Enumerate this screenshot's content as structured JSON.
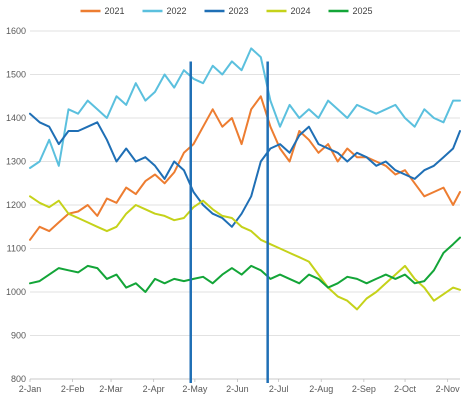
{
  "chart_data": {
    "type": "line",
    "title": "",
    "xlabel": "",
    "ylabel": "",
    "ylim": [
      800,
      1600
    ],
    "yticks": [
      800,
      900,
      1000,
      1100,
      1200,
      1300,
      1400,
      1500,
      1600
    ],
    "xlim": [
      "2-Jan",
      "11-Nov"
    ],
    "x_tick_labels": [
      "2-Jan",
      "2-Feb",
      "2-Mar",
      "2-Apr",
      "2-May",
      "2-Jun",
      "2-Jul",
      "2-Aug",
      "2-Sep",
      "2-Oct",
      "2-Nov"
    ],
    "grid": "horizontal",
    "legend": "top",
    "series": [
      {
        "name": "2021",
        "color": "#ED7D31",
        "points": [
          [
            "2-Jan",
            1120
          ],
          [
            "9-Jan",
            1150
          ],
          [
            "16-Jan",
            1140
          ],
          [
            "23-Jan",
            1160
          ],
          [
            "30-Jan",
            1180
          ],
          [
            "6-Feb",
            1185
          ],
          [
            "13-Feb",
            1200
          ],
          [
            "20-Feb",
            1175
          ],
          [
            "27-Feb",
            1215
          ],
          [
            "6-Mar",
            1205
          ],
          [
            "13-Mar",
            1240
          ],
          [
            "20-Mar",
            1225
          ],
          [
            "27-Mar",
            1255
          ],
          [
            "3-Apr",
            1270
          ],
          [
            "10-Apr",
            1250
          ],
          [
            "17-Apr",
            1275
          ],
          [
            "24-Apr",
            1320
          ],
          [
            "1-May",
            1340
          ],
          [
            "8-May",
            1380
          ],
          [
            "15-May",
            1420
          ],
          [
            "22-May",
            1380
          ],
          [
            "29-May",
            1400
          ],
          [
            "5-Jun",
            1340
          ],
          [
            "12-Jun",
            1420
          ],
          [
            "19-Jun",
            1450
          ],
          [
            "26-Jun",
            1380
          ],
          [
            "3-Jul",
            1330
          ],
          [
            "10-Jul",
            1300
          ],
          [
            "17-Jul",
            1370
          ],
          [
            "24-Jul",
            1350
          ],
          [
            "31-Jul",
            1320
          ],
          [
            "7-Aug",
            1340
          ],
          [
            "14-Aug",
            1300
          ],
          [
            "21-Aug",
            1330
          ],
          [
            "28-Aug",
            1310
          ],
          [
            "4-Sep",
            1310
          ],
          [
            "11-Sep",
            1300
          ],
          [
            "18-Sep",
            1290
          ],
          [
            "25-Sep",
            1270
          ],
          [
            "2-Oct",
            1280
          ],
          [
            "9-Oct",
            1250
          ],
          [
            "16-Oct",
            1220
          ],
          [
            "23-Oct",
            1230
          ],
          [
            "30-Oct",
            1240
          ],
          [
            "6-Nov",
            1200
          ],
          [
            "11-Nov",
            1230
          ]
        ]
      },
      {
        "name": "2022",
        "color": "#5BC0DE",
        "points": [
          [
            "2-Jan",
            1285
          ],
          [
            "9-Jan",
            1300
          ],
          [
            "16-Jan",
            1350
          ],
          [
            "23-Jan",
            1290
          ],
          [
            "30-Jan",
            1420
          ],
          [
            "6-Feb",
            1410
          ],
          [
            "13-Feb",
            1440
          ],
          [
            "20-Feb",
            1420
          ],
          [
            "27-Feb",
            1400
          ],
          [
            "6-Mar",
            1450
          ],
          [
            "13-Mar",
            1430
          ],
          [
            "20-Mar",
            1480
          ],
          [
            "27-Mar",
            1440
          ],
          [
            "3-Apr",
            1460
          ],
          [
            "10-Apr",
            1500
          ],
          [
            "17-Apr",
            1470
          ],
          [
            "24-Apr",
            1510
          ],
          [
            "1-May",
            1490
          ],
          [
            "8-May",
            1480
          ],
          [
            "15-May",
            1520
          ],
          [
            "22-May",
            1500
          ],
          [
            "29-May",
            1530
          ],
          [
            "5-Jun",
            1510
          ],
          [
            "12-Jun",
            1560
          ],
          [
            "19-Jun",
            1540
          ],
          [
            "26-Jun",
            1440
          ],
          [
            "3-Jul",
            1380
          ],
          [
            "10-Jul",
            1430
          ],
          [
            "17-Jul",
            1400
          ],
          [
            "24-Jul",
            1420
          ],
          [
            "31-Jul",
            1400
          ],
          [
            "7-Aug",
            1440
          ],
          [
            "14-Aug",
            1420
          ],
          [
            "21-Aug",
            1400
          ],
          [
            "28-Aug",
            1430
          ],
          [
            "4-Sep",
            1420
          ],
          [
            "11-Sep",
            1410
          ],
          [
            "18-Sep",
            1420
          ],
          [
            "25-Sep",
            1430
          ],
          [
            "2-Oct",
            1400
          ],
          [
            "9-Oct",
            1380
          ],
          [
            "16-Oct",
            1420
          ],
          [
            "23-Oct",
            1400
          ],
          [
            "30-Oct",
            1390
          ],
          [
            "6-Nov",
            1440
          ],
          [
            "11-Nov",
            1440
          ]
        ]
      },
      {
        "name": "2023",
        "color": "#1F6FB5",
        "points": [
          [
            "2-Jan",
            1410
          ],
          [
            "9-Jan",
            1390
          ],
          [
            "16-Jan",
            1380
          ],
          [
            "23-Jan",
            1340
          ],
          [
            "30-Jan",
            1370
          ],
          [
            "6-Feb",
            1370
          ],
          [
            "13-Feb",
            1380
          ],
          [
            "20-Feb",
            1390
          ],
          [
            "27-Feb",
            1350
          ],
          [
            "6-Mar",
            1300
          ],
          [
            "13-Mar",
            1330
          ],
          [
            "20-Mar",
            1300
          ],
          [
            "27-Mar",
            1310
          ],
          [
            "3-Apr",
            1290
          ],
          [
            "10-Apr",
            1260
          ],
          [
            "17-Apr",
            1300
          ],
          [
            "24-Apr",
            1280
          ],
          [
            "1-May",
            1230
          ],
          [
            "8-May",
            1200
          ],
          [
            "15-May",
            1180
          ],
          [
            "22-May",
            1170
          ],
          [
            "29-May",
            1150
          ],
          [
            "5-Jun",
            1180
          ],
          [
            "12-Jun",
            1220
          ],
          [
            "19-Jun",
            1300
          ],
          [
            "26-Jun",
            1330
          ],
          [
            "3-Jul",
            1340
          ],
          [
            "10-Jul",
            1320
          ],
          [
            "17-Jul",
            1360
          ],
          [
            "24-Jul",
            1380
          ],
          [
            "31-Jul",
            1340
          ],
          [
            "7-Aug",
            1330
          ],
          [
            "14-Aug",
            1320
          ],
          [
            "21-Aug",
            1300
          ],
          [
            "28-Aug",
            1320
          ],
          [
            "4-Sep",
            1310
          ],
          [
            "11-Sep",
            1290
          ],
          [
            "18-Sep",
            1300
          ],
          [
            "25-Sep",
            1280
          ],
          [
            "2-Oct",
            1270
          ],
          [
            "9-Oct",
            1260
          ],
          [
            "16-Oct",
            1280
          ],
          [
            "23-Oct",
            1290
          ],
          [
            "30-Oct",
            1310
          ],
          [
            "6-Nov",
            1330
          ],
          [
            "11-Nov",
            1370
          ]
        ]
      },
      {
        "name": "2024",
        "color": "#C5D21A",
        "points": [
          [
            "2-Jan",
            1220
          ],
          [
            "9-Jan",
            1205
          ],
          [
            "16-Jan",
            1195
          ],
          [
            "23-Jan",
            1210
          ],
          [
            "30-Jan",
            1180
          ],
          [
            "6-Feb",
            1170
          ],
          [
            "13-Feb",
            1160
          ],
          [
            "20-Feb",
            1150
          ],
          [
            "27-Feb",
            1140
          ],
          [
            "6-Mar",
            1150
          ],
          [
            "13-Mar",
            1180
          ],
          [
            "20-Mar",
            1200
          ],
          [
            "27-Mar",
            1190
          ],
          [
            "3-Apr",
            1180
          ],
          [
            "10-Apr",
            1175
          ],
          [
            "17-Apr",
            1165
          ],
          [
            "24-Apr",
            1170
          ],
          [
            "1-May",
            1195
          ],
          [
            "8-May",
            1210
          ],
          [
            "15-May",
            1190
          ],
          [
            "22-May",
            1175
          ],
          [
            "29-May",
            1170
          ],
          [
            "5-Jun",
            1150
          ],
          [
            "12-Jun",
            1140
          ],
          [
            "19-Jun",
            1120
          ],
          [
            "26-Jun",
            1110
          ],
          [
            "3-Jul",
            1100
          ],
          [
            "10-Jul",
            1090
          ],
          [
            "17-Jul",
            1080
          ],
          [
            "24-Jul",
            1070
          ],
          [
            "31-Jul",
            1040
          ],
          [
            "7-Aug",
            1010
          ],
          [
            "14-Aug",
            990
          ],
          [
            "21-Aug",
            980
          ],
          [
            "28-Aug",
            960
          ],
          [
            "4-Sep",
            985
          ],
          [
            "11-Sep",
            1000
          ],
          [
            "18-Sep",
            1020
          ],
          [
            "25-Sep",
            1040
          ],
          [
            "2-Oct",
            1060
          ],
          [
            "9-Oct",
            1030
          ],
          [
            "16-Oct",
            1010
          ],
          [
            "23-Oct",
            980
          ],
          [
            "30-Oct",
            995
          ],
          [
            "6-Nov",
            1010
          ],
          [
            "11-Nov",
            1005
          ]
        ]
      },
      {
        "name": "2025",
        "color": "#13A538",
        "points": [
          [
            "2-Jan",
            1020
          ],
          [
            "9-Jan",
            1025
          ],
          [
            "16-Jan",
            1040
          ],
          [
            "23-Jan",
            1055
          ],
          [
            "30-Jan",
            1050
          ],
          [
            "6-Feb",
            1045
          ],
          [
            "13-Feb",
            1060
          ],
          [
            "20-Feb",
            1055
          ],
          [
            "27-Feb",
            1030
          ],
          [
            "6-Mar",
            1040
          ],
          [
            "13-Mar",
            1010
          ],
          [
            "20-Mar",
            1020
          ],
          [
            "27-Mar",
            1000
          ],
          [
            "3-Apr",
            1030
          ],
          [
            "10-Apr",
            1020
          ],
          [
            "17-Apr",
            1030
          ],
          [
            "24-Apr",
            1025
          ],
          [
            "1-May",
            1030
          ],
          [
            "8-May",
            1035
          ],
          [
            "15-May",
            1020
          ],
          [
            "22-May",
            1040
          ],
          [
            "29-May",
            1055
          ],
          [
            "5-Jun",
            1040
          ],
          [
            "12-Jun",
            1060
          ],
          [
            "19-Jun",
            1050
          ],
          [
            "26-Jun",
            1030
          ],
          [
            "3-Jul",
            1040
          ],
          [
            "10-Jul",
            1030
          ],
          [
            "17-Jul",
            1020
          ],
          [
            "24-Jul",
            1040
          ],
          [
            "31-Jul",
            1030
          ],
          [
            "7-Aug",
            1010
          ],
          [
            "14-Aug",
            1020
          ],
          [
            "21-Aug",
            1035
          ],
          [
            "28-Aug",
            1030
          ],
          [
            "4-Sep",
            1020
          ],
          [
            "11-Sep",
            1030
          ],
          [
            "18-Sep",
            1040
          ],
          [
            "25-Sep",
            1030
          ],
          [
            "2-Oct",
            1040
          ],
          [
            "9-Oct",
            1020
          ],
          [
            "16-Oct",
            1025
          ],
          [
            "23-Oct",
            1050
          ],
          [
            "30-Oct",
            1090
          ],
          [
            "6-Nov",
            1110
          ],
          [
            "11-Nov",
            1125
          ]
        ]
      }
    ],
    "vertical_markers": [
      {
        "x": "29-Apr",
        "y_top": 1530,
        "color": "#1F6FB5"
      },
      {
        "x": "24-Jun",
        "y_top": 1530,
        "color": "#1F6FB5"
      }
    ]
  }
}
